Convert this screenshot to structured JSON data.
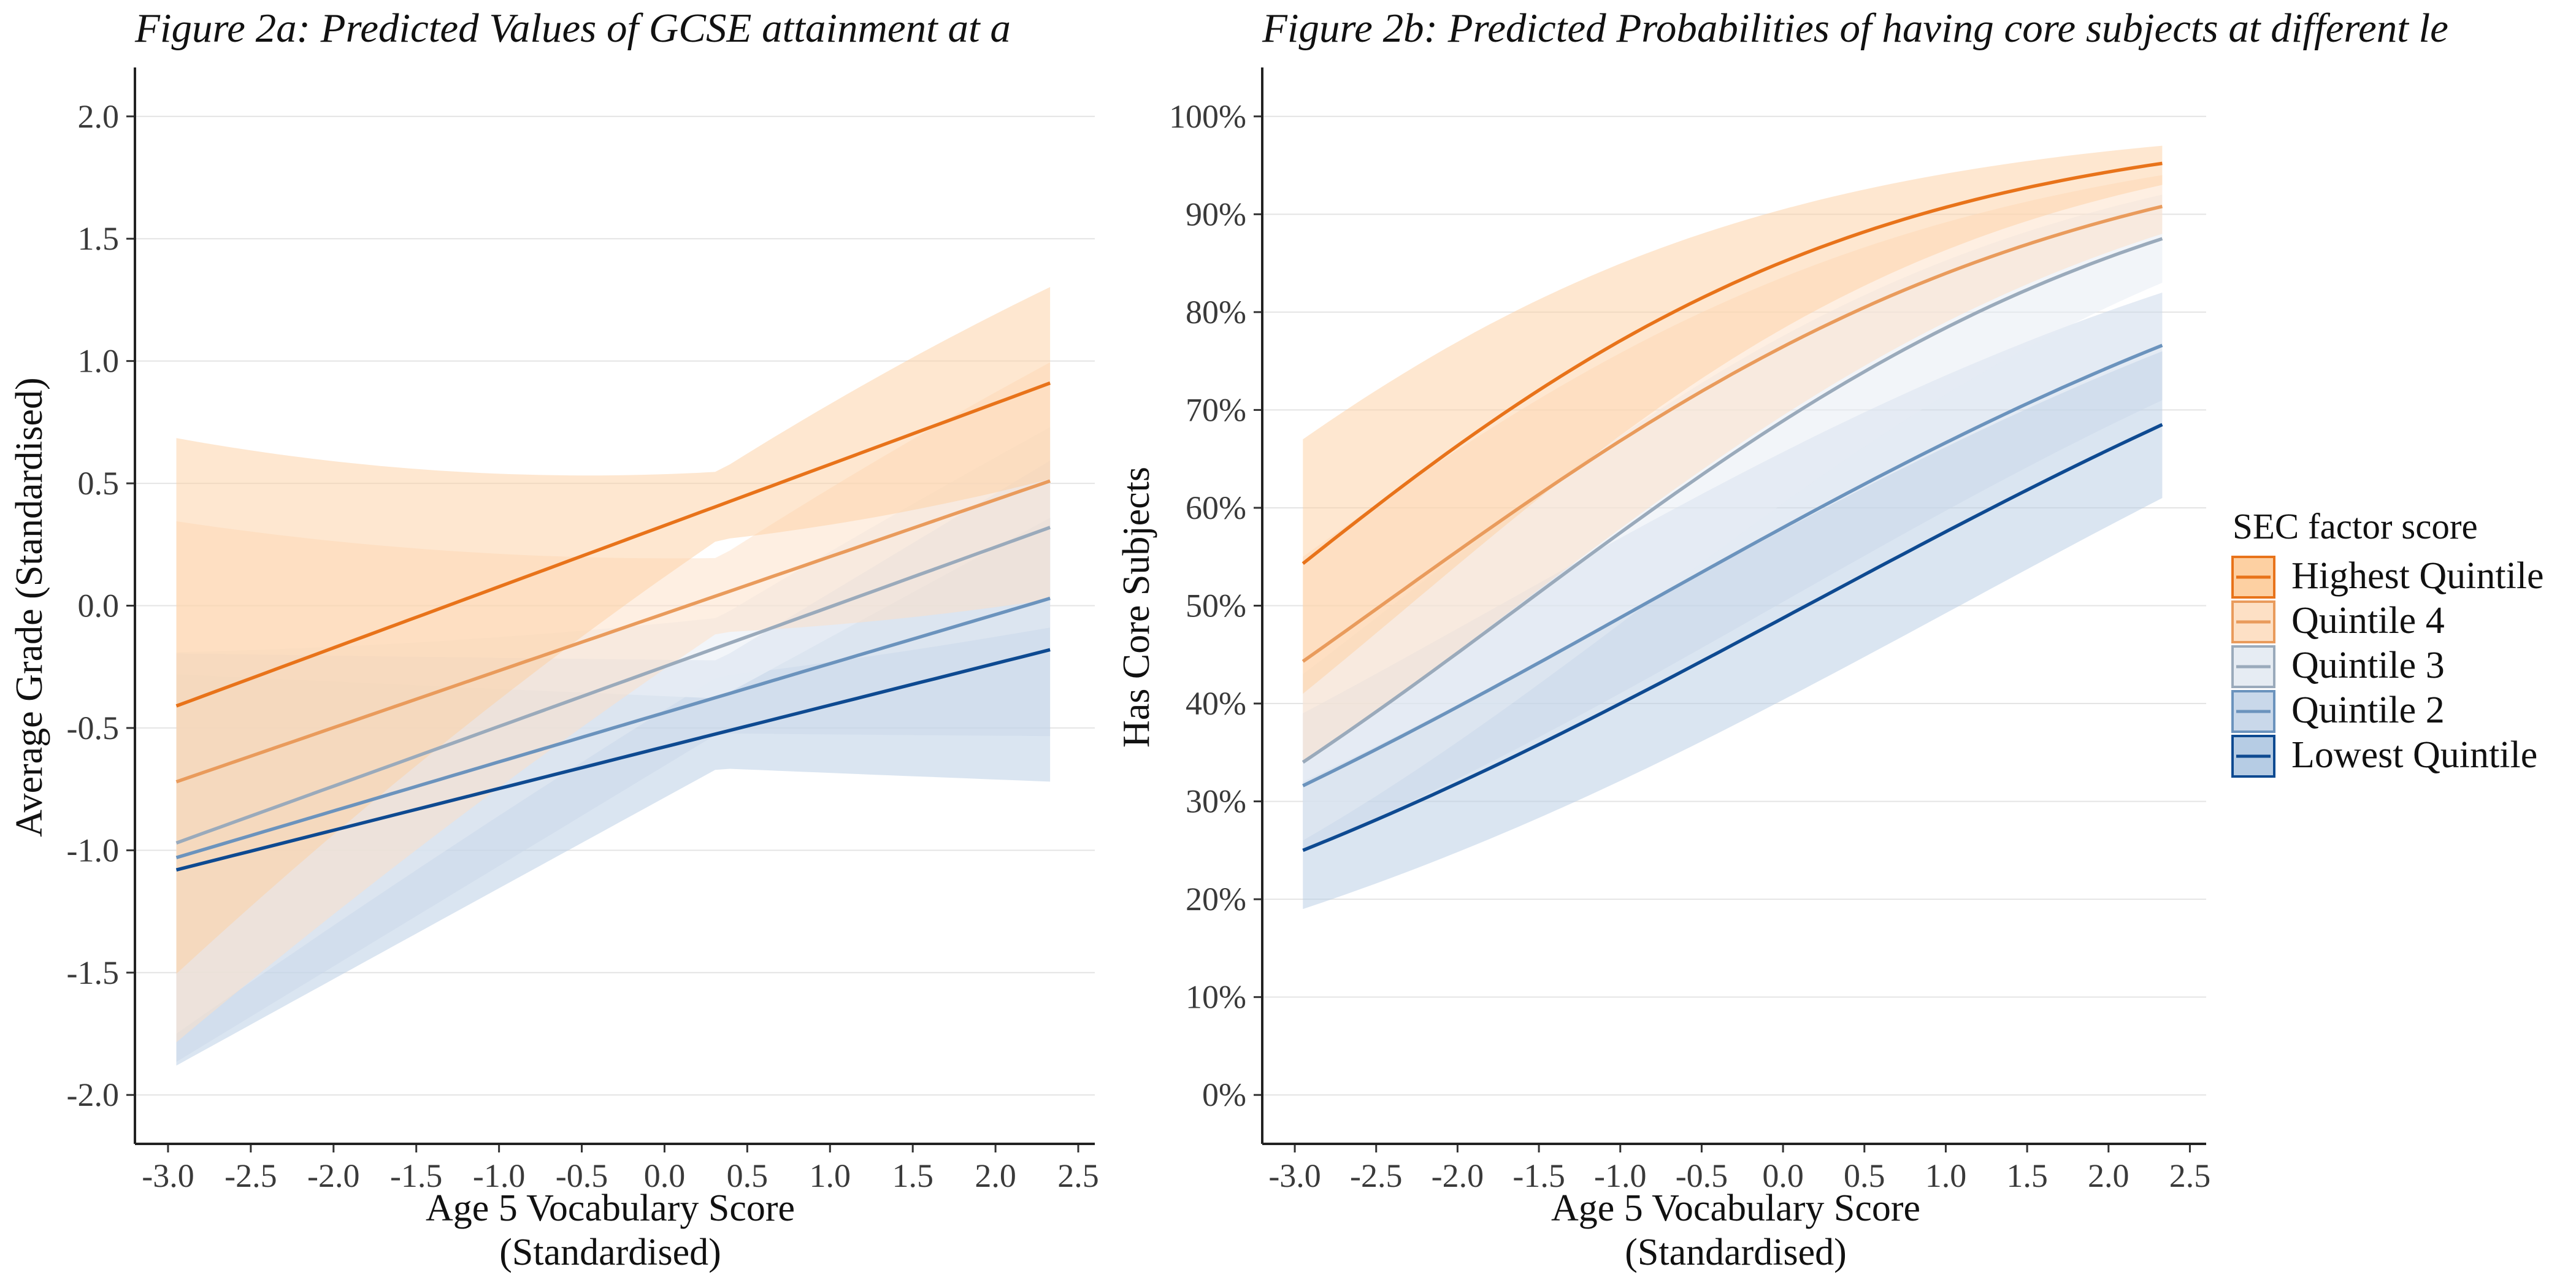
{
  "chart_data": [
    {
      "type": "line",
      "title": "Figure 2a: Predicted Values of GCSE attainment at a",
      "xlabel": [
        "Age 5 Vocabulary Score",
        "(Standardised)"
      ],
      "ylabel": "Average Grade (Standardised)",
      "xlim": [
        -3.2,
        2.6
      ],
      "ylim": [
        -2.2,
        2.2
      ],
      "x_ticks": [
        "-3.0",
        "-2.5",
        "-2.0",
        "-1.5",
        "-1.0",
        "-0.5",
        "0.0",
        "0.5",
        "1.0",
        "1.5",
        "2.0",
        "2.5"
      ],
      "x_tick_values": [
        -3.0,
        -2.5,
        -2.0,
        -1.5,
        -1.0,
        -0.5,
        0.0,
        0.5,
        1.0,
        1.5,
        2.0,
        2.5
      ],
      "y_ticks": [
        "-2.0",
        "-1.5",
        "-1.0",
        "-0.5",
        "0.0",
        "0.5",
        "1.0",
        "1.5",
        "2.0"
      ],
      "y_tick_values": [
        -2.0,
        -1.5,
        -1.0,
        -0.5,
        0.0,
        0.5,
        1.0,
        1.5,
        2.0
      ],
      "grid": "horizontal",
      "x": [
        -2.95,
        2.33
      ],
      "series": [
        {
          "name": "Highest Quintile",
          "values": [
            -0.41,
            0.91
          ],
          "ci_lower": [
            -1.5,
            0.37
          ],
          "ci_upper": [
            0.69,
            1.52
          ],
          "ci_min_width": 0.5
        },
        {
          "name": "Quintile 4",
          "values": [
            -0.72,
            0.51
          ],
          "ci_lower": [
            -1.8,
            -0.2
          ],
          "ci_upper": [
            0.33,
            1.22
          ],
          "ci_min_width": 0.45
        },
        {
          "name": "Quintile 3",
          "values": [
            -0.97,
            0.32
          ],
          "ci_lower": [
            -1.76,
            -0.28
          ],
          "ci_upper": [
            -0.2,
            0.92
          ],
          "ci_min_width": 0.35
        },
        {
          "name": "Quintile 2",
          "values": [
            -1.03,
            0.03
          ],
          "ci_lower": [
            -1.87,
            -0.8
          ],
          "ci_upper": [
            -0.2,
            0.85
          ],
          "ci_min_width": 0.55
        },
        {
          "name": "Lowest Quintile",
          "values": [
            -1.08,
            -0.18
          ],
          "ci_lower": [
            -1.9,
            -0.98
          ],
          "ci_upper": [
            -0.3,
            0.6
          ],
          "ci_min_width": 0.55
        }
      ]
    },
    {
      "type": "line",
      "title": "Figure 2b: Predicted Probabilities of having core subjects at different le",
      "xlabel": [
        "Age 5 Vocabulary Score",
        "(Standardised)"
      ],
      "ylabel": "Has Core Subjects",
      "xlim": [
        -3.2,
        2.6
      ],
      "ylim": [
        -0.05,
        1.05
      ],
      "x_ticks": [
        "-3.0",
        "-2.5",
        "-2.0",
        "-1.5",
        "-1.0",
        "-0.5",
        "0.0",
        "0.5",
        "1.0",
        "1.5",
        "2.0",
        "2.5"
      ],
      "x_tick_values": [
        -3.0,
        -2.5,
        -2.0,
        -1.5,
        -1.0,
        -0.5,
        0.0,
        0.5,
        1.0,
        1.5,
        2.0,
        2.5
      ],
      "y_ticks": [
        "0%",
        "10%",
        "20%",
        "30%",
        "40%",
        "50%",
        "60%",
        "70%",
        "80%",
        "90%",
        "100%"
      ],
      "y_tick_values": [
        0,
        0.1,
        0.2,
        0.3,
        0.4,
        0.5,
        0.6,
        0.7,
        0.8,
        0.9,
        1.0
      ],
      "grid": "horizontal",
      "x": [
        -2.95,
        2.33
      ],
      "series": [
        {
          "name": "Highest Quintile",
          "values": [
            0.543,
            0.952
          ],
          "ci_lower": [
            0.41,
            0.93
          ],
          "ci_upper": [
            0.67,
            0.97
          ]
        },
        {
          "name": "Quintile 4",
          "values": [
            0.443,
            0.908
          ],
          "ci_lower": [
            0.34,
            0.88
          ],
          "ci_upper": [
            0.55,
            0.94
          ]
        },
        {
          "name": "Quintile 3",
          "values": [
            0.34,
            0.875
          ],
          "ci_lower": [
            0.26,
            0.83
          ],
          "ci_upper": [
            0.43,
            0.92
          ]
        },
        {
          "name": "Quintile 2",
          "values": [
            0.316,
            0.766
          ],
          "ci_lower": [
            0.25,
            0.71
          ],
          "ci_upper": [
            0.39,
            0.82
          ]
        },
        {
          "name": "Lowest Quintile",
          "values": [
            0.25,
            0.685
          ],
          "ci_lower": [
            0.19,
            0.61
          ],
          "ci_upper": [
            0.32,
            0.76
          ]
        }
      ]
    }
  ],
  "legend": {
    "title": "SEC factor score",
    "placement": "right",
    "items": [
      "Highest Quintile",
      "Quintile 4",
      "Quintile 3",
      "Quintile 2",
      "Lowest Quintile"
    ]
  },
  "colors": {
    "Highest Quintile": {
      "line": "#e8731a",
      "band": "#fdd0a2"
    },
    "Quintile 4": {
      "line": "#e99b5c",
      "band": "#fde0c5"
    },
    "Quintile 3": {
      "line": "#9aaabb",
      "band": "#e6ecf3"
    },
    "Quintile 2": {
      "line": "#6b93bd",
      "band": "#c9d8ea"
    },
    "Lowest Quintile": {
      "line": "#0e4a91",
      "band": "#b6cce4"
    }
  }
}
